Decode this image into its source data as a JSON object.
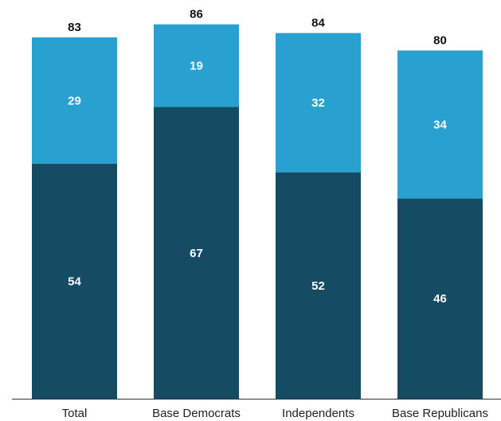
{
  "chart_data": {
    "type": "bar",
    "stacked": true,
    "categories": [
      "Total",
      "Base Democrats",
      "Independents",
      "Base Republicans"
    ],
    "series": [
      {
        "values": [
          54,
          67,
          52,
          46
        ],
        "color": "#164c63"
      },
      {
        "values": [
          29,
          19,
          32,
          34
        ],
        "color": "#28a0d0"
      }
    ],
    "totals": [
      83,
      86,
      84,
      80
    ],
    "ylim": [
      0,
      100
    ],
    "grid": false,
    "legend": "none",
    "title": "",
    "xlabel": "",
    "ylabel": ""
  }
}
